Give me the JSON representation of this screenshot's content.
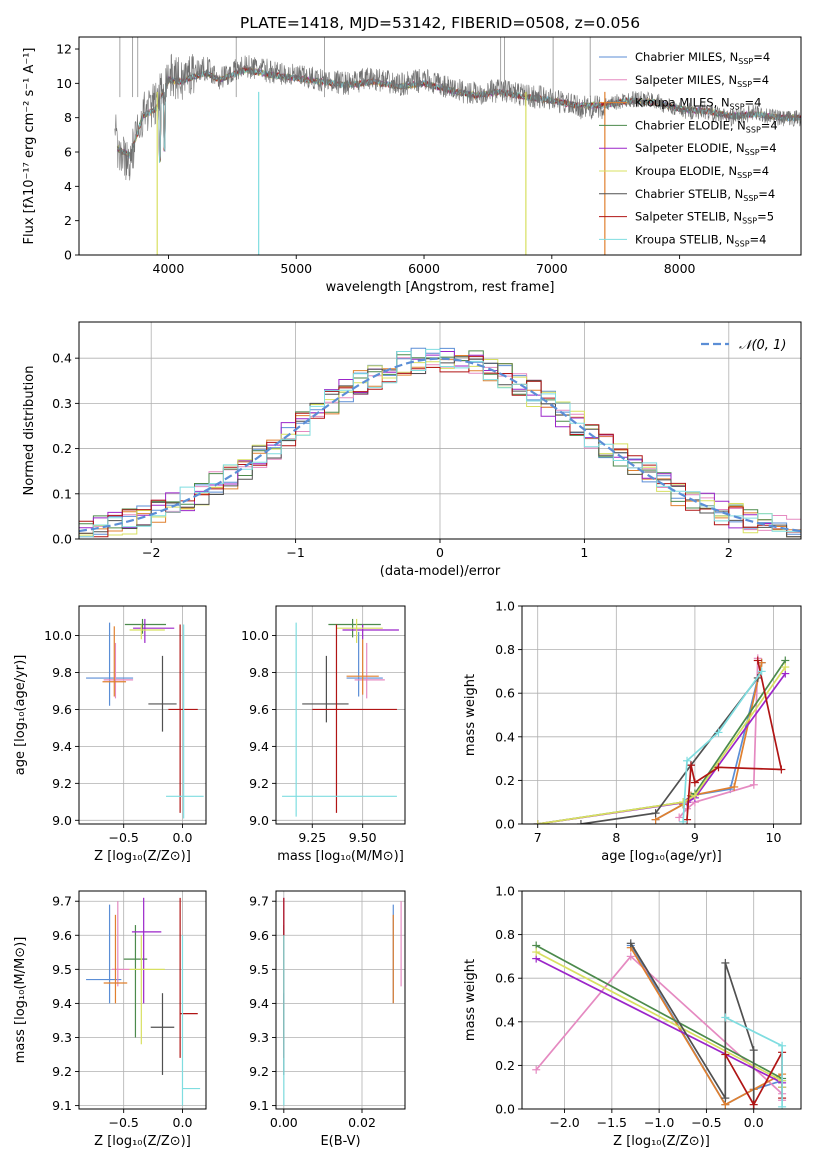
{
  "figure": {
    "title": "PLATE=1418, MJD=53142, FIBERID=0508, z=0.056"
  },
  "models": [
    {
      "name": "Chabrier MILES, N",
      "sub": "SSP",
      "tail": "=4",
      "color": "#5b8ed6"
    },
    {
      "name": "Salpeter MILES, N",
      "sub": "SSP",
      "tail": "=4",
      "color": "#e58ac1"
    },
    {
      "name": "Kroupa MILES, N",
      "sub": "SSP",
      "tail": "=4",
      "color": "#e0802f"
    },
    {
      "name": "Chabrier ELODIE, N",
      "sub": "SSP",
      "tail": "=4",
      "color": "#4c8a4c"
    },
    {
      "name": "Salpeter ELODIE, N",
      "sub": "SSP",
      "tail": "=4",
      "color": "#9b25c9"
    },
    {
      "name": "Kroupa ELODIE, N",
      "sub": "SSP",
      "tail": "=4",
      "color": "#d8e060"
    },
    {
      "name": "Chabrier STELIB, N",
      "sub": "SSP",
      "tail": "=4",
      "color": "#505050"
    },
    {
      "name": "Salpeter STELIB, N",
      "sub": "SSP",
      "tail": "=5",
      "color": "#b01515"
    },
    {
      "name": "Kroupa STELIB, N",
      "sub": "SSP",
      "tail": "=4",
      "color": "#7fdde0"
    }
  ],
  "chart_data": [
    {
      "id": "spectrum",
      "type": "line",
      "title": "PLATE=1418, MJD=53142, FIBERID=0508, z=0.056",
      "xlabel": "wavelength [Angstrom, rest frame]",
      "ylabel": "Flux [fλ10⁻¹⁷ erg cm⁻² s⁻¹ A⁻¹]",
      "xlim": [
        3300,
        8950
      ],
      "ylim": [
        0,
        12.7
      ],
      "xticks": [
        4000,
        5000,
        6000,
        7000,
        8000
      ],
      "yticks": [
        0,
        2,
        4,
        6,
        8,
        10,
        12
      ],
      "grid": false,
      "legend": "upper right",
      "series": [
        {
          "name": "data",
          "color": "#808080",
          "x": [
            3600,
            3700,
            3800,
            3900,
            4000,
            4100,
            4200,
            4300,
            4400,
            4600,
            4800,
            5000,
            5200,
            5400,
            5600,
            5800,
            6000,
            6200,
            6400,
            6600,
            6800,
            7000,
            7200,
            7400,
            7600,
            7800,
            8000,
            8200,
            8400,
            8600,
            8800,
            8950
          ],
          "y": [
            6.0,
            5.5,
            8.3,
            8.8,
            10.5,
            10.2,
            10.7,
            10.9,
            10.3,
            11.0,
            10.7,
            10.4,
            10.2,
            10.0,
            10.3,
            9.9,
            10.2,
            9.7,
            9.4,
            9.6,
            9.3,
            9.1,
            8.6,
            8.6,
            9.1,
            9.0,
            8.4,
            8.4,
            8.0,
            8.3,
            7.9,
            8.0
          ]
        },
        {
          "name": "model",
          "color": "#7fdde0",
          "x": [
            3600,
            3700,
            3800,
            3900,
            4000,
            4100,
            4200,
            4300,
            4400,
            4600,
            4800,
            5000,
            5200,
            5400,
            5600,
            5800,
            6000,
            6200,
            6400,
            6600,
            6800,
            7000,
            7200,
            7400,
            7600,
            7800,
            8000,
            8200,
            8400,
            8600,
            8800,
            8950
          ],
          "y": [
            6.2,
            5.8,
            8.1,
            8.5,
            10.2,
            10.1,
            10.4,
            10.6,
            10.2,
            10.8,
            10.5,
            10.3,
            10.1,
            9.9,
            10.1,
            9.8,
            10.0,
            9.6,
            9.3,
            9.5,
            9.2,
            9.0,
            8.7,
            8.7,
            9.0,
            8.9,
            8.5,
            8.4,
            8.1,
            8.2,
            8.0,
            8.0
          ]
        }
      ]
    },
    {
      "id": "residuals",
      "type": "line",
      "xlabel": "(data-model)/error",
      "ylabel": "Normed distribution",
      "xlim": [
        -2.5,
        2.5
      ],
      "ylim": [
        0,
        0.48
      ],
      "xticks": [
        -2,
        -1,
        0,
        1,
        2
      ],
      "yticks": [
        0.0,
        0.1,
        0.2,
        0.3,
        0.4
      ],
      "grid": true,
      "legend": "upper right",
      "legend_label": "𝒩(0, 1)",
      "series": [
        {
          "name": "𝒩(0, 1)",
          "dashed": true,
          "color": "#5b8ed6",
          "mu": 0,
          "sigma": 1
        }
      ]
    },
    {
      "id": "age-vs-Z",
      "type": "scatter",
      "xlabel": "Z [log₁₀(Z/Z⊙)]",
      "ylabel": "age  [log₁₀(age/yr)]",
      "xlim": [
        -0.88,
        0.2
      ],
      "ylim": [
        8.98,
        10.16
      ],
      "xticks": [
        -0.5,
        0.0
      ],
      "yticks": [
        9.0,
        9.2,
        9.4,
        9.6,
        9.8,
        10.0
      ],
      "grid": true,
      "points": [
        {
          "x": -0.62,
          "y": 9.77,
          "xerr": [
            0.2,
            0.2
          ],
          "yerr": [
            0.15,
            0.3
          ]
        },
        {
          "x": -0.57,
          "y": 9.76,
          "xerr": [
            0.1,
            0.15
          ],
          "yerr": [
            0.1,
            0.2
          ]
        },
        {
          "x": -0.58,
          "y": 9.75,
          "xerr": [
            0.1,
            0.1
          ],
          "yerr": [
            0.08,
            0.3
          ]
        },
        {
          "x": -0.34,
          "y": 10.06,
          "xerr": [
            0.15,
            0.2
          ],
          "yerr": [
            0.05,
            0.03
          ]
        },
        {
          "x": -0.32,
          "y": 10.04,
          "xerr": [
            0.1,
            0.25
          ],
          "yerr": [
            0.08,
            0.05
          ]
        },
        {
          "x": -0.35,
          "y": 10.03,
          "xerr": [
            0.1,
            0.2
          ],
          "yerr": [
            0.05,
            0.03
          ]
        },
        {
          "x": -0.17,
          "y": 9.63,
          "xerr": [
            0.12,
            0.12
          ],
          "yerr": [
            0.15,
            0.26
          ]
        },
        {
          "x": -0.02,
          "y": 9.6,
          "xerr": [
            0.1,
            0.15
          ],
          "yerr": [
            0.56,
            0.46
          ]
        },
        {
          "x": 0.01,
          "y": 9.13,
          "xerr": [
            0.15,
            0.17
          ],
          "yerr": [
            0.12,
            0.93
          ]
        }
      ]
    },
    {
      "id": "age-vs-mass",
      "type": "scatter",
      "xlabel": "mass [log₁₀(M/M⊙)]",
      "ylabel": "",
      "xlim": [
        9.07,
        9.71
      ],
      "ylim": [
        8.98,
        10.16
      ],
      "xticks": [
        9.25,
        9.5
      ],
      "yticks": [
        9.0,
        9.2,
        9.4,
        9.6,
        9.8,
        10.0
      ],
      "grid": true,
      "points": [
        {
          "x": 9.48,
          "y": 9.77,
          "xerr": [
            0.06,
            0.12
          ],
          "yerr": [
            0.1,
            0.25
          ]
        },
        {
          "x": 9.52,
          "y": 9.76,
          "xerr": [
            0.06,
            0.09
          ],
          "yerr": [
            0.1,
            0.2
          ]
        },
        {
          "x": 9.5,
          "y": 9.78,
          "xerr": [
            0.08,
            0.08
          ],
          "yerr": [
            0.1,
            0.2
          ]
        },
        {
          "x": 9.45,
          "y": 10.06,
          "xerr": [
            0.12,
            0.14
          ],
          "yerr": [
            0.07,
            0.03
          ]
        },
        {
          "x": 9.5,
          "y": 10.03,
          "xerr": [
            0.1,
            0.18
          ],
          "yerr": [
            0.05,
            0.03
          ]
        },
        {
          "x": 9.47,
          "y": 10.04,
          "xerr": [
            0.1,
            0.13
          ],
          "yerr": [
            0.08,
            0.05
          ]
        },
        {
          "x": 9.32,
          "y": 9.63,
          "xerr": [
            0.12,
            0.11
          ],
          "yerr": [
            0.1,
            0.26
          ]
        },
        {
          "x": 9.37,
          "y": 9.6,
          "xerr": [
            0.12,
            0.3
          ],
          "yerr": [
            0.56,
            0.46
          ]
        },
        {
          "x": 9.17,
          "y": 9.13,
          "xerr": [
            0.07,
            0.5
          ],
          "yerr": [
            0.11,
            0.94
          ]
        }
      ]
    },
    {
      "id": "massweight-vs-age",
      "type": "line",
      "xlabel": "age  [log₁₀(age/yr)]",
      "ylabel": "mass weight",
      "xlim": [
        6.8,
        10.35
      ],
      "ylim": [
        0,
        1
      ],
      "xticks": [
        7,
        8,
        9,
        10
      ],
      "yticks": [
        0.0,
        0.2,
        0.4,
        0.6,
        0.8,
        1.0
      ],
      "grid": true,
      "series": [
        {
          "x": [
            8.5,
            8.85,
            8.95,
            9.45,
            9.85
          ],
          "y": [
            0.02,
            0.09,
            0.13,
            0.16,
            0.74
          ]
        },
        {
          "x": [
            8.8,
            8.9,
            9.0,
            9.75,
            9.8
          ],
          "y": [
            0.03,
            0.07,
            0.1,
            0.18,
            0.76
          ]
        },
        {
          "x": [
            8.5,
            8.85,
            8.95,
            9.5,
            9.85
          ],
          "y": [
            0.02,
            0.09,
            0.13,
            0.17,
            0.74
          ]
        },
        {
          "x": [
            7.0,
            8.85,
            9.0,
            10.15
          ],
          "y": [
            0.0,
            0.1,
            0.14,
            0.75
          ]
        },
        {
          "x": [
            7.0,
            8.9,
            9.0,
            10.15
          ],
          "y": [
            0.0,
            0.1,
            0.12,
            0.69
          ]
        },
        {
          "x": [
            7.0,
            8.85,
            9.0,
            10.15
          ],
          "y": [
            0.0,
            0.1,
            0.13,
            0.72
          ]
        },
        {
          "x": [
            7.55,
            8.5,
            8.95,
            9.8
          ],
          "y": [
            0.0,
            0.05,
            0.27,
            0.67
          ]
        },
        {
          "x": [
            8.9,
            8.95,
            9.0,
            9.3,
            10.1,
            9.8
          ],
          "y": [
            0.02,
            0.27,
            0.19,
            0.26,
            0.25,
            0.75
          ]
        },
        {
          "x": [
            8.85,
            8.9,
            9.3,
            9.85
          ],
          "y": [
            0.01,
            0.29,
            0.42,
            0.7
          ]
        }
      ]
    },
    {
      "id": "mass-vs-Z",
      "type": "scatter",
      "xlabel": "Z [log₁₀(Z/Z⊙)]",
      "ylabel": "mass [log₁₀(M/M⊙)]",
      "xlim": [
        -0.88,
        0.2
      ],
      "ylim": [
        9.09,
        9.73
      ],
      "xticks": [
        -0.5,
        0.0
      ],
      "yticks": [
        9.1,
        9.2,
        9.3,
        9.4,
        9.5,
        9.6,
        9.7
      ],
      "grid": true,
      "points": [
        {
          "x": -0.62,
          "y": 9.47,
          "xerr": [
            0.2,
            0.1
          ],
          "yerr": [
            0.07,
            0.22
          ]
        },
        {
          "x": -0.55,
          "y": 9.5,
          "xerr": [
            0.05,
            0.1
          ],
          "yerr": [
            0.05,
            0.2
          ]
        },
        {
          "x": -0.57,
          "y": 9.46,
          "xerr": [
            0.1,
            0.1
          ],
          "yerr": [
            0.06,
            0.2
          ]
        },
        {
          "x": -0.4,
          "y": 9.53,
          "xerr": [
            0.1,
            0.1
          ],
          "yerr": [
            0.23,
            0.1
          ]
        },
        {
          "x": -0.33,
          "y": 9.61,
          "xerr": [
            0.1,
            0.15
          ],
          "yerr": [
            0.21,
            0.1
          ]
        },
        {
          "x": -0.35,
          "y": 9.5,
          "xerr": [
            0.1,
            0.2
          ],
          "yerr": [
            0.22,
            0.1
          ]
        },
        {
          "x": -0.17,
          "y": 9.33,
          "xerr": [
            0.1,
            0.1
          ],
          "yerr": [
            0.14,
            0.1
          ]
        },
        {
          "x": -0.02,
          "y": 9.37,
          "xerr": [
            0.0,
            0.15
          ],
          "yerr": [
            0.13,
            0.34
          ]
        },
        {
          "x": 0.0,
          "y": 9.15,
          "xerr": [
            0.0,
            0.15
          ],
          "yerr": [
            0.05,
            0.45
          ]
        }
      ]
    },
    {
      "id": "mass-vs-EBV",
      "type": "scatter",
      "xlabel": "E(B-V)",
      "ylabel": "",
      "xlim": [
        -0.002,
        0.031
      ],
      "ylim": [
        9.09,
        9.73
      ],
      "xticks": [
        0.0,
        0.02
      ],
      "yticks": [
        9.1,
        9.2,
        9.3,
        9.4,
        9.5,
        9.6,
        9.7
      ],
      "grid": true,
      "points": [
        {
          "x": 0.028,
          "y": 9.47,
          "yerr": [
            0.07,
            0.22
          ]
        },
        {
          "x": 0.03,
          "y": 9.5,
          "yerr": [
            0.05,
            0.2
          ]
        },
        {
          "x": 0.028,
          "y": 9.46,
          "yerr": [
            0.06,
            0.2
          ]
        },
        {
          "x": 0.0,
          "y": 9.53,
          "yerr": [
            0.23,
            0.1
          ]
        },
        {
          "x": 0.0,
          "y": 9.61,
          "yerr": [
            0.21,
            0.1
          ]
        },
        {
          "x": 0.0,
          "y": 9.5,
          "yerr": [
            0.22,
            0.1
          ]
        },
        {
          "x": 0.0,
          "y": 9.33,
          "yerr": [
            0.14,
            0.1
          ]
        },
        {
          "x": 0.0,
          "y": 9.37,
          "yerr": [
            0.13,
            0.34
          ]
        },
        {
          "x": 0.0,
          "y": 9.15,
          "yerr": [
            0.05,
            0.45
          ]
        }
      ]
    },
    {
      "id": "massweight-vs-Z",
      "type": "line",
      "xlabel": "Z [log₁₀(Z/Z⊙)]",
      "ylabel": "mass weight",
      "xlim": [
        -2.45,
        0.5
      ],
      "ylim": [
        0,
        1
      ],
      "xticks": [
        -2.0,
        -1.5,
        -1.0,
        -0.5,
        0.0
      ],
      "yticks": [
        0.0,
        0.2,
        0.4,
        0.6,
        0.8,
        1.0
      ],
      "grid": true,
      "series": [
        {
          "x": [
            -1.3,
            -0.3,
            0.0,
            0.3
          ],
          "y": [
            0.75,
            0.02,
            0.09,
            0.13
          ]
        },
        {
          "x": [
            -2.3,
            -1.3,
            0.3,
            0.3
          ],
          "y": [
            0.18,
            0.7,
            0.07,
            0.04
          ]
        },
        {
          "x": [
            -1.3,
            -0.3,
            0.0,
            0.3
          ],
          "y": [
            0.74,
            0.02,
            0.09,
            0.16
          ]
        },
        {
          "x": [
            -2.3,
            0.3,
            0.3
          ],
          "y": [
            0.75,
            0.14,
            0.1
          ]
        },
        {
          "x": [
            -2.3,
            0.3,
            0.3
          ],
          "y": [
            0.69,
            0.12,
            0.1
          ]
        },
        {
          "x": [
            -2.3,
            0.3,
            0.3
          ],
          "y": [
            0.72,
            0.13,
            0.1
          ]
        },
        {
          "x": [
            -1.3,
            -0.3,
            -0.3,
            0.0,
            0.0
          ],
          "y": [
            0.76,
            0.05,
            0.67,
            0.27,
            0.0
          ]
        },
        {
          "x": [
            -0.3,
            0.0,
            0.3,
            0.3
          ],
          "y": [
            0.25,
            0.02,
            0.26,
            0.05
          ]
        },
        {
          "x": [
            -0.3,
            0.3,
            0.3
          ],
          "y": [
            0.42,
            0.29,
            0.01
          ]
        }
      ]
    }
  ]
}
